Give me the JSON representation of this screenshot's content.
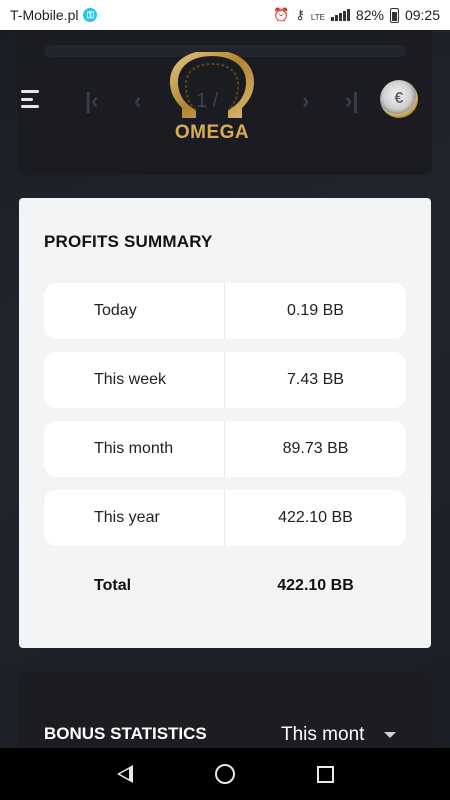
{
  "status_bar": {
    "carrier": "T-Mobile.pl",
    "carrier_badge_icon": "key-badge-icon",
    "network": "LTE",
    "battery": "82%",
    "time": "09:25"
  },
  "header": {
    "page_indicator": "1 /",
    "logo_text": "OMEGA",
    "avatar_icon": "euro-coin-icon"
  },
  "profits_summary": {
    "title": "PROFITS SUMMARY",
    "rows": [
      {
        "label": "Today",
        "value": "0.19 BB"
      },
      {
        "label": "This week",
        "value": "7.43 BB"
      },
      {
        "label": "This month",
        "value": "89.73 BB"
      },
      {
        "label": "This year",
        "value": "422.10 BB"
      }
    ],
    "total": {
      "label": "Total",
      "value": "422.10 BB"
    }
  },
  "bonus_statistics": {
    "title": "BONUS STATISTICS",
    "period": "This mont"
  },
  "colors": {
    "background": "#15171d",
    "card": "#f3f4f6",
    "logo_gold": "#d6ad55"
  }
}
